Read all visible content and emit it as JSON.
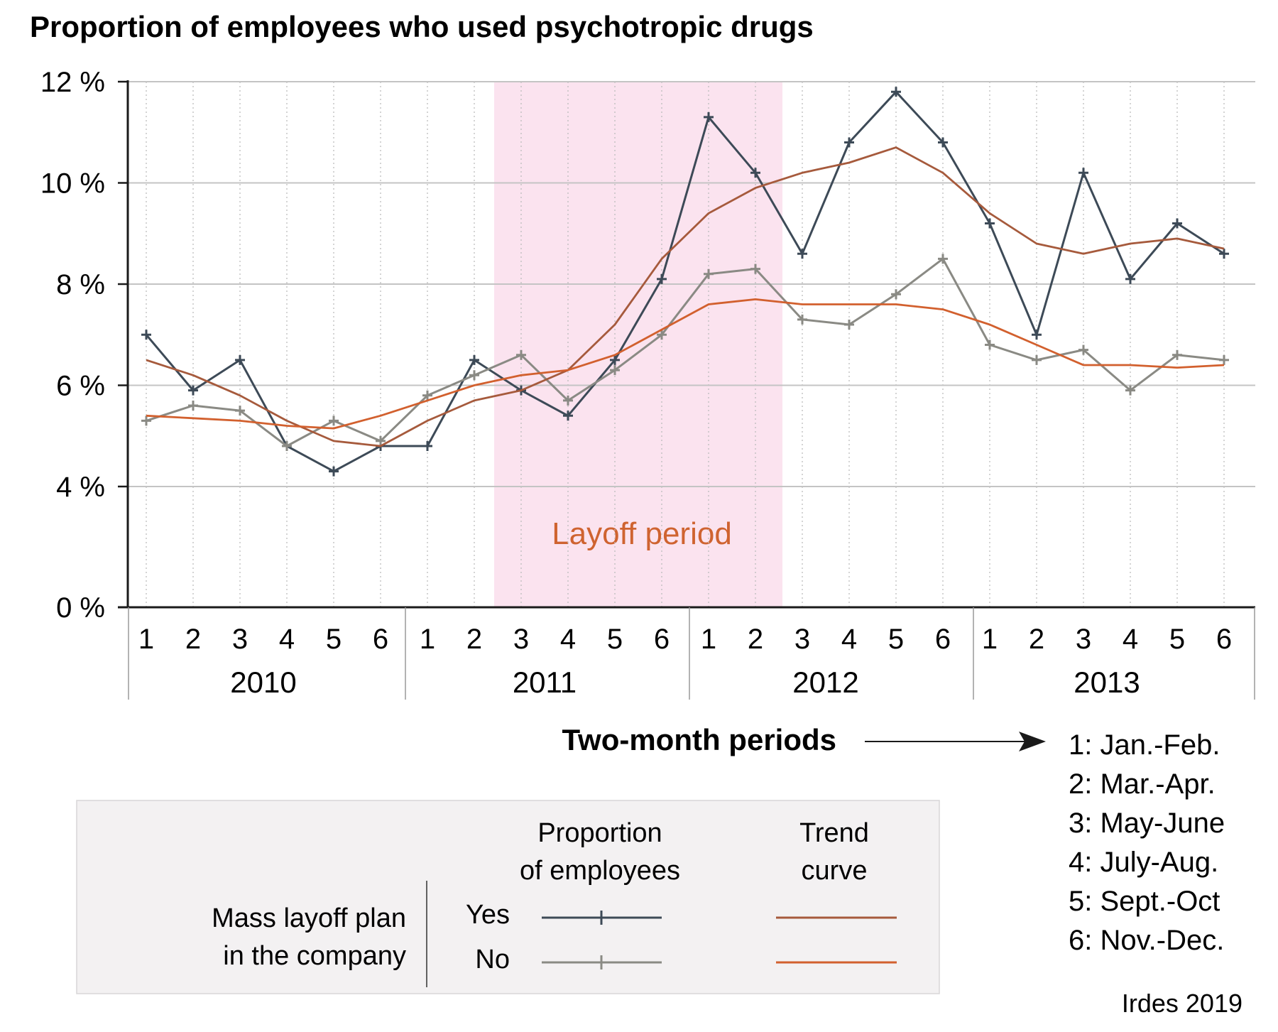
{
  "chart_data": {
    "type": "line",
    "title": "Proportion of employees who used psychotropic drugs",
    "xlabel": "Two-month periods",
    "ylabel": "",
    "y_ticks": [
      "0 %",
      "4 %",
      "6 %",
      "8 %",
      "10 %",
      "12 %"
    ],
    "ylim": [
      0,
      12
    ],
    "y_scale": "broken-axis",
    "period_labels": [
      "1",
      "2",
      "3",
      "4",
      "5",
      "6",
      "1",
      "2",
      "3",
      "4",
      "5",
      "6",
      "1",
      "2",
      "3",
      "4",
      "5",
      "6",
      "1",
      "2",
      "3",
      "4",
      "5",
      "6"
    ],
    "years": [
      "2010",
      "2011",
      "2012",
      "2013"
    ],
    "shaded_region": {
      "label": "Layoff period",
      "from_period_index": 8,
      "to_period_index": 13,
      "color": "#fbe3ef",
      "label_color": "#cf6330"
    },
    "grid": true,
    "series": [
      {
        "group": "Proportion of employees",
        "legend_row": "Yes",
        "color": "#3d4a57",
        "marker": "+",
        "values": [
          7.0,
          5.9,
          6.5,
          4.8,
          4.3,
          4.8,
          4.8,
          6.5,
          5.9,
          5.4,
          6.5,
          8.1,
          11.3,
          10.2,
          8.6,
          10.8,
          11.8,
          10.8,
          9.2,
          7.0,
          10.2,
          8.1,
          9.2,
          8.6
        ]
      },
      {
        "group": "Proportion of employees",
        "legend_row": "No",
        "color": "#8a8a84",
        "marker": "+",
        "values": [
          5.3,
          5.6,
          5.5,
          4.8,
          5.3,
          4.9,
          5.8,
          6.2,
          6.6,
          5.7,
          6.3,
          7.0,
          8.2,
          8.3,
          7.3,
          7.2,
          7.8,
          8.5,
          6.8,
          6.5,
          6.7,
          5.9,
          6.6,
          6.5
        ]
      },
      {
        "group": "Trend curve",
        "legend_row": "Yes",
        "color": "#a65a3c",
        "marker": "none",
        "values": [
          6.5,
          6.2,
          5.8,
          5.3,
          4.9,
          4.8,
          5.3,
          5.7,
          5.9,
          6.3,
          7.2,
          8.5,
          9.4,
          9.9,
          10.2,
          10.4,
          10.7,
          10.2,
          9.4,
          8.8,
          8.6,
          8.8,
          8.9,
          8.7
        ]
      },
      {
        "group": "Trend curve",
        "legend_row": "No",
        "color": "#d2602e",
        "marker": "none",
        "values": [
          5.4,
          5.35,
          5.3,
          5.2,
          5.15,
          5.4,
          5.7,
          6.0,
          6.2,
          6.3,
          6.6,
          7.1,
          7.6,
          7.7,
          7.6,
          7.6,
          7.6,
          7.5,
          7.2,
          6.8,
          6.4,
          6.4,
          6.35,
          6.4
        ]
      }
    ],
    "legend": {
      "header_series": [
        "Proportion",
        "of employees"
      ],
      "header_trend": [
        "Trend",
        "curve"
      ],
      "row_title": [
        "Mass layoff plan",
        "in the company"
      ],
      "row_yes": "Yes",
      "row_no": "No",
      "placement": "bottom-left"
    },
    "period_key": [
      "1: Jan.-Feb.",
      "2: Mar.-Apr.",
      "3: May-June",
      "4: July-Aug.",
      "5: Sept.-Oct",
      "6: Nov.-Dec."
    ],
    "source": "Irdes 2019"
  }
}
